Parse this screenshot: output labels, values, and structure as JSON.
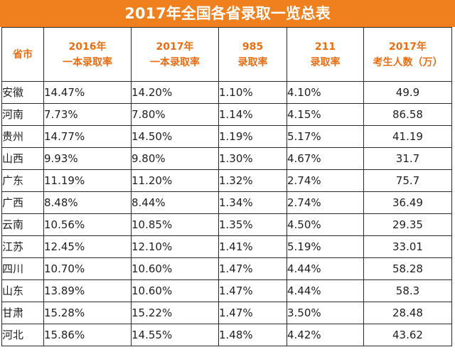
{
  "title": "2017年全国各省录取一览总表",
  "headers": [
    {
      "line1": "省市",
      "line2": ""
    },
    {
      "line1": "2016年",
      "line2": "一本录取率"
    },
    {
      "line1": "2017年",
      "line2": "一本录取率"
    },
    {
      "line1": "985",
      "line2": "录取率"
    },
    {
      "line1": "211",
      "line2": "录取率"
    },
    {
      "line1": "2017年",
      "line2": "考生人数（万）"
    }
  ],
  "rows": [
    {
      "province": "安徽",
      "rate2016": "14.47%",
      "rate2017": "14.20%",
      "rate985": "1.10%",
      "rate211": "4.10%",
      "examinees": "49.9"
    },
    {
      "province": "河南",
      "rate2016": "7.73%",
      "rate2017": "7.80%",
      "rate985": "1.14%",
      "rate211": "4.15%",
      "examinees": "86.58"
    },
    {
      "province": "贵州",
      "rate2016": "14.77%",
      "rate2017": "14.50%",
      "rate985": "1.19%",
      "rate211": "5.17%",
      "examinees": "41.19"
    },
    {
      "province": "山西",
      "rate2016": "9.93%",
      "rate2017": "9.80%",
      "rate985": "1.30%",
      "rate211": "4.67%",
      "examinees": "31.7"
    },
    {
      "province": "广东",
      "rate2016": "11.19%",
      "rate2017": "11.20%",
      "rate985": "1.32%",
      "rate211": "2.74%",
      "examinees": "75.7"
    },
    {
      "province": "广西",
      "rate2016": "8.48%",
      "rate2017": "8.44%",
      "rate985": "1.34%",
      "rate211": "2.74%",
      "examinees": "36.49"
    },
    {
      "province": "云南",
      "rate2016": "10.56%",
      "rate2017": "10.85%",
      "rate985": "1.35%",
      "rate211": "4.50%",
      "examinees": "29.35"
    },
    {
      "province": "江苏",
      "rate2016": "12.45%",
      "rate2017": "12.10%",
      "rate985": "1.41%",
      "rate211": "5.19%",
      "examinees": "33.01"
    },
    {
      "province": "四川",
      "rate2016": "10.70%",
      "rate2017": "10.60%",
      "rate985": "1.47%",
      "rate211": "4.44%",
      "examinees": "58.28"
    },
    {
      "province": "山东",
      "rate2016": "13.89%",
      "rate2017": "10.60%",
      "rate985": "1.47%",
      "rate211": "4.44%",
      "examinees": "58.3"
    },
    {
      "province": "甘肃",
      "rate2016": "15.28%",
      "rate2017": "15.22%",
      "rate985": "1.47%",
      "rate211": "3.50%",
      "examinees": "28.48"
    },
    {
      "province": "河北",
      "rate2016": "15.86%",
      "rate2017": "14.55%",
      "rate985": "1.48%",
      "rate211": "4.42%",
      "examinees": "43.62"
    }
  ],
  "colors": {
    "accent": "#f07f1d",
    "header_text": "#ea6d12",
    "border": "#2a2a2a"
  }
}
